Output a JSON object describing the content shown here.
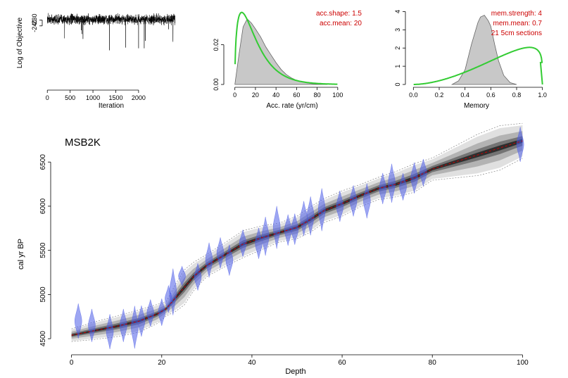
{
  "chart_data": [
    {
      "type": "line",
      "id": "iteration-trace",
      "xlabel": "Iteration",
      "ylabel": "Log of Objective",
      "xlim": [
        -50,
        2850
      ],
      "ylim": [
        -345,
        -215
      ],
      "xticks": [
        0,
        500,
        1000,
        1500,
        2000
      ],
      "yticks": [
        -230,
        -240
      ],
      "ytick_labels_shown": [
        "-230",
        "-240"
      ],
      "colors": {
        "line": "#000000"
      },
      "series": [
        {
          "values_description_mean": -229,
          "range": [
            -242,
            -218
          ],
          "n": 2800
        }
      ]
    },
    {
      "type": "area",
      "id": "accumulation-rate",
      "xlabel": "Acc. rate (yr/cm)",
      "ylabel": "",
      "xlim": [
        -8,
        122
      ],
      "ylim": [
        0,
        0.039
      ],
      "xticks": [
        0,
        20,
        40,
        60,
        80,
        100
      ],
      "yticks": [
        0.0,
        0.02
      ],
      "ytick_labels": [
        "0.00",
        "0.02"
      ],
      "annotations": [
        "acc.shape:  1.5",
        "acc.mean:  20"
      ],
      "posterior": {
        "x": [
          0,
          4,
          8,
          12,
          16,
          20,
          25,
          30,
          35,
          40,
          45,
          50,
          55,
          60,
          65,
          70,
          75,
          80,
          85,
          90
        ],
        "y": [
          0,
          0.015,
          0.029,
          0.033,
          0.031,
          0.028,
          0.024,
          0.019,
          0.015,
          0.011,
          0.0075,
          0.005,
          0.0033,
          0.0021,
          0.0013,
          0.0008,
          0.0004,
          0.0002,
          0.0001,
          0
        ]
      },
      "prior": {
        "shape": 1.5,
        "mean": 20,
        "xmax": 100
      },
      "colors": {
        "posterior_fill": "#c8c8c8",
        "posterior_line": "#666666",
        "prior": "#33cc33",
        "annotation": "#cc0000"
      }
    },
    {
      "type": "area",
      "id": "memory",
      "xlabel": "Memory",
      "ylabel": "",
      "xlim": [
        -0.04,
        1.04
      ],
      "ylim": [
        0,
        4.25
      ],
      "xticks": [
        0.0,
        0.2,
        0.4,
        0.6,
        0.8,
        1.0
      ],
      "xtick_labels": [
        "0.0",
        "0.2",
        "0.4",
        "0.6",
        "0.8",
        "1.0"
      ],
      "yticks": [
        0,
        1,
        2,
        3,
        4
      ],
      "annotations": [
        "mem.strength: 4",
        "mem.mean: 0.7",
        "21 5cm sections"
      ],
      "posterior": {
        "x": [
          0.3,
          0.35,
          0.4,
          0.45,
          0.5,
          0.52,
          0.55,
          0.58,
          0.6,
          0.63,
          0.66,
          0.7,
          0.75,
          0.8
        ],
        "y": [
          0,
          0.2,
          0.8,
          2.2,
          3.4,
          3.7,
          3.8,
          3.5,
          3.2,
          2.2,
          1.3,
          0.5,
          0.1,
          0
        ]
      },
      "prior": {
        "alpha": 2.8,
        "beta": 1.2,
        "xmin": 0.0,
        "xmax": 1.0
      },
      "colors": {
        "posterior_fill": "#c8c8c8",
        "posterior_line": "#666666",
        "prior": "#33cc33",
        "annotation": "#cc0000"
      }
    },
    {
      "type": "line",
      "id": "age-depth",
      "title": "MSB2K",
      "xlabel": "Depth",
      "ylabel": "cal yr BP",
      "xlim": [
        -4,
        104
      ],
      "ylim": [
        4350,
        6900
      ],
      "xticks": [
        0,
        20,
        40,
        60,
        80,
        100
      ],
      "yticks": [
        4500,
        5000,
        5500,
        6000,
        6500
      ],
      "model": {
        "depth": [
          0,
          5,
          10,
          15,
          19,
          21,
          23,
          25,
          27,
          30,
          34,
          38,
          42,
          46,
          50,
          53,
          56,
          60,
          64,
          68,
          72,
          76,
          80,
          85,
          90,
          95,
          100
        ],
        "age": [
          4540,
          4590,
          4640,
          4700,
          4780,
          4840,
          4960,
          5080,
          5200,
          5330,
          5450,
          5570,
          5640,
          5700,
          5760,
          5850,
          5950,
          6030,
          6120,
          6200,
          6250,
          6320,
          6420,
          6500,
          6580,
          6660,
          6740
        ],
        "spread": [
          40,
          55,
          65,
          70,
          60,
          45,
          85,
          110,
          90,
          70,
          75,
          85,
          75,
          60,
          70,
          80,
          75,
          80,
          70,
          70,
          80,
          90,
          70,
          100,
          130,
          140,
          110
        ]
      },
      "dates": [
        {
          "depth": 1.5,
          "age": 4700,
          "sd": 90
        },
        {
          "depth": 4.5,
          "age": 4650,
          "sd": 85
        },
        {
          "depth": 8.5,
          "age": 4580,
          "sd": 90
        },
        {
          "depth": 11.5,
          "age": 4650,
          "sd": 85
        },
        {
          "depth": 14,
          "age": 4630,
          "sd": 110
        },
        {
          "depth": 15.5,
          "age": 4700,
          "sd": 80
        },
        {
          "depth": 17.5,
          "age": 4790,
          "sd": 70
        },
        {
          "depth": 20,
          "age": 4800,
          "sd": 70
        },
        {
          "depth": 21.5,
          "age": 4950,
          "sd": 70
        },
        {
          "depth": 22.5,
          "age": 5030,
          "sd": 120
        },
        {
          "depth": 24.5,
          "age": 5210,
          "sd": 50
        },
        {
          "depth": 28,
          "age": 5200,
          "sd": 70
        },
        {
          "depth": 30.5,
          "age": 5390,
          "sd": 90
        },
        {
          "depth": 33,
          "age": 5470,
          "sd": 80
        },
        {
          "depth": 35,
          "age": 5390,
          "sd": 80
        },
        {
          "depth": 38,
          "age": 5580,
          "sd": 70
        },
        {
          "depth": 41.5,
          "age": 5580,
          "sd": 80
        },
        {
          "depth": 43,
          "age": 5660,
          "sd": 100
        },
        {
          "depth": 45.5,
          "age": 5760,
          "sd": 110
        },
        {
          "depth": 48,
          "age": 5730,
          "sd": 80
        },
        {
          "depth": 49.5,
          "age": 5740,
          "sd": 80
        },
        {
          "depth": 51.5,
          "age": 5860,
          "sd": 90
        },
        {
          "depth": 53,
          "age": 5890,
          "sd": 100
        },
        {
          "depth": 55.5,
          "age": 5960,
          "sd": 110
        },
        {
          "depth": 59.5,
          "age": 6000,
          "sd": 80
        },
        {
          "depth": 62.5,
          "age": 6060,
          "sd": 80
        },
        {
          "depth": 65.5,
          "age": 6060,
          "sd": 90
        },
        {
          "depth": 69,
          "age": 6200,
          "sd": 80
        },
        {
          "depth": 71,
          "age": 6260,
          "sd": 100
        },
        {
          "depth": 73.5,
          "age": 6220,
          "sd": 70
        },
        {
          "depth": 76,
          "age": 6320,
          "sd": 80
        },
        {
          "depth": 78,
          "age": 6380,
          "sd": 70
        },
        {
          "depth": 99.5,
          "age": 6700,
          "sd": 90
        }
      ],
      "colors": {
        "model_grey": "#000000",
        "model_mean": "#cc0000",
        "dates": "#4d5ce8",
        "hpd": "#888888"
      }
    }
  ]
}
